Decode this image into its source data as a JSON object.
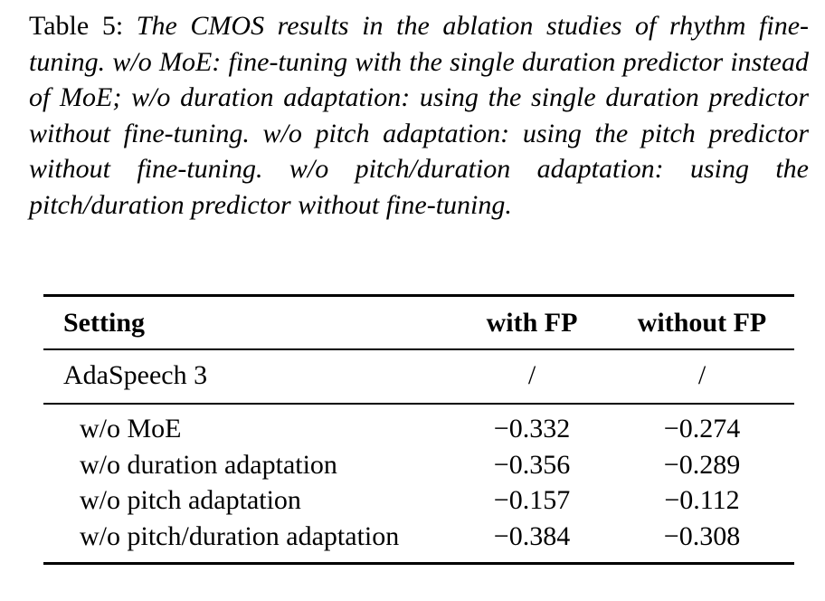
{
  "caption": {
    "label": "Table 5:",
    "text": "The CMOS results in the ablation studies of rhythm fine-tuning. w/o MoE: fine-tuning with the single duration predictor instead of MoE; w/o duration adaptation: using the single duration predictor without fine-tuning.  w/o pitch adaptation:  using the pitch predictor without fine-tuning.  w/o pitch/duration adaptation:  using the pitch/duration predictor without fine-tuning."
  },
  "table": {
    "headers": [
      "Setting",
      "with FP",
      "without FP"
    ],
    "baseline": {
      "setting": "AdaSpeech 3",
      "with_fp": "/",
      "without_fp": "/"
    },
    "rows": [
      {
        "setting": "w/o MoE",
        "with_fp": "−0.332",
        "without_fp": "−0.274"
      },
      {
        "setting": "w/o duration adaptation",
        "with_fp": "−0.356",
        "without_fp": "−0.289"
      },
      {
        "setting": "w/o pitch adaptation",
        "with_fp": "−0.157",
        "without_fp": "−0.112"
      },
      {
        "setting": "w/o pitch/duration adaptation",
        "with_fp": "−0.384",
        "without_fp": "−0.308"
      }
    ]
  }
}
